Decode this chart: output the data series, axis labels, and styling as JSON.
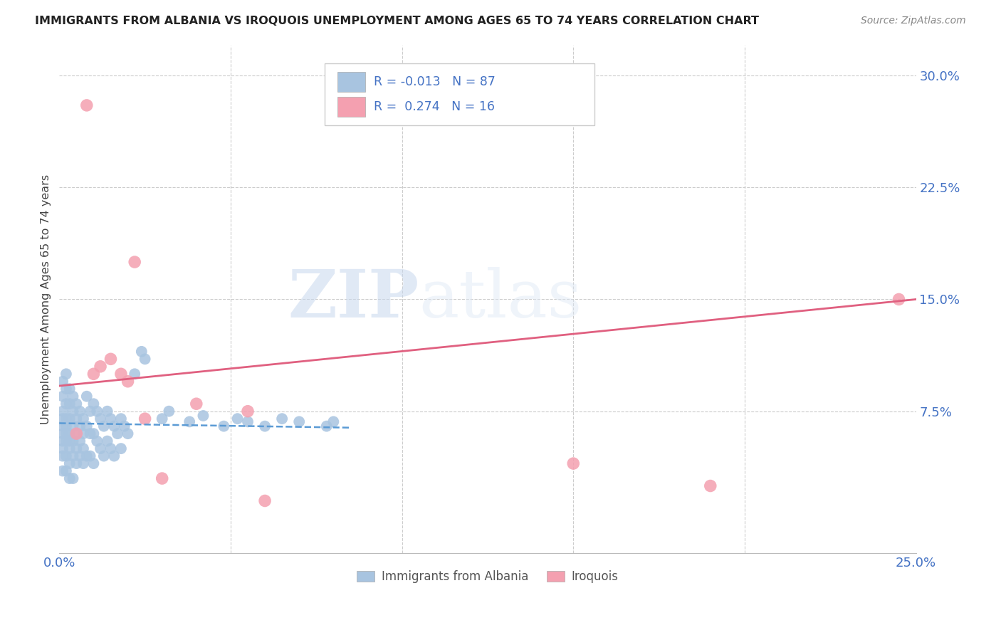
{
  "title": "IMMIGRANTS FROM ALBANIA VS IROQUOIS UNEMPLOYMENT AMONG AGES 65 TO 74 YEARS CORRELATION CHART",
  "source": "Source: ZipAtlas.com",
  "ylabel": "Unemployment Among Ages 65 to 74 years",
  "xlim": [
    0.0,
    0.25
  ],
  "ylim": [
    -0.02,
    0.32
  ],
  "yticks_right": [
    0.075,
    0.15,
    0.225,
    0.3
  ],
  "yticklabels_right": [
    "7.5%",
    "15.0%",
    "22.5%",
    "30.0%"
  ],
  "legend_albania": "Immigrants from Albania",
  "legend_iroquois": "Iroquois",
  "albania_R": "-0.013",
  "albania_N": "87",
  "iroquois_R": "0.274",
  "iroquois_N": "16",
  "albania_color": "#a8c4e0",
  "iroquois_color": "#f4a0b0",
  "albania_line_color": "#5b9bd5",
  "iroquois_line_color": "#e06080",
  "watermark_zip": "ZIP",
  "watermark_atlas": "atlas",
  "albania_x": [
    0.001,
    0.001,
    0.001,
    0.001,
    0.001,
    0.001,
    0.001,
    0.001,
    0.001,
    0.001,
    0.002,
    0.002,
    0.002,
    0.002,
    0.002,
    0.002,
    0.002,
    0.002,
    0.002,
    0.003,
    0.003,
    0.003,
    0.003,
    0.003,
    0.003,
    0.003,
    0.003,
    0.004,
    0.004,
    0.004,
    0.004,
    0.004,
    0.004,
    0.005,
    0.005,
    0.005,
    0.005,
    0.005,
    0.006,
    0.006,
    0.006,
    0.006,
    0.007,
    0.007,
    0.007,
    0.007,
    0.008,
    0.008,
    0.008,
    0.009,
    0.009,
    0.009,
    0.01,
    0.01,
    0.01,
    0.011,
    0.011,
    0.012,
    0.012,
    0.013,
    0.013,
    0.014,
    0.014,
    0.015,
    0.015,
    0.016,
    0.016,
    0.017,
    0.018,
    0.018,
    0.019,
    0.02,
    0.022,
    0.024,
    0.025,
    0.03,
    0.032,
    0.038,
    0.042,
    0.048,
    0.052,
    0.055,
    0.06,
    0.065,
    0.07,
    0.078,
    0.08
  ],
  "albania_y": [
    0.095,
    0.085,
    0.075,
    0.07,
    0.065,
    0.06,
    0.055,
    0.05,
    0.045,
    0.035,
    0.1,
    0.09,
    0.08,
    0.07,
    0.065,
    0.06,
    0.055,
    0.045,
    0.035,
    0.09,
    0.08,
    0.07,
    0.06,
    0.055,
    0.05,
    0.04,
    0.03,
    0.085,
    0.075,
    0.065,
    0.055,
    0.045,
    0.03,
    0.08,
    0.07,
    0.06,
    0.05,
    0.04,
    0.075,
    0.065,
    0.055,
    0.045,
    0.07,
    0.06,
    0.05,
    0.04,
    0.085,
    0.065,
    0.045,
    0.075,
    0.06,
    0.045,
    0.08,
    0.06,
    0.04,
    0.075,
    0.055,
    0.07,
    0.05,
    0.065,
    0.045,
    0.075,
    0.055,
    0.07,
    0.05,
    0.065,
    0.045,
    0.06,
    0.07,
    0.05,
    0.065,
    0.06,
    0.1,
    0.115,
    0.11,
    0.07,
    0.075,
    0.068,
    0.072,
    0.065,
    0.07,
    0.068,
    0.065,
    0.07,
    0.068,
    0.065,
    0.068
  ],
  "iroquois_x": [
    0.008,
    0.01,
    0.012,
    0.015,
    0.018,
    0.02,
    0.022,
    0.04,
    0.055,
    0.06,
    0.15,
    0.19,
    0.245,
    0.025,
    0.005,
    0.03
  ],
  "iroquois_y": [
    0.28,
    0.1,
    0.105,
    0.11,
    0.1,
    0.095,
    0.175,
    0.08,
    0.075,
    0.015,
    0.04,
    0.025,
    0.15,
    0.07,
    0.06,
    0.03
  ],
  "albania_line_x": [
    0.0,
    0.085
  ],
  "albania_line_y": [
    0.067,
    0.064
  ],
  "iroquois_line_x": [
    0.0,
    0.25
  ],
  "iroquois_line_y": [
    0.092,
    0.15
  ]
}
